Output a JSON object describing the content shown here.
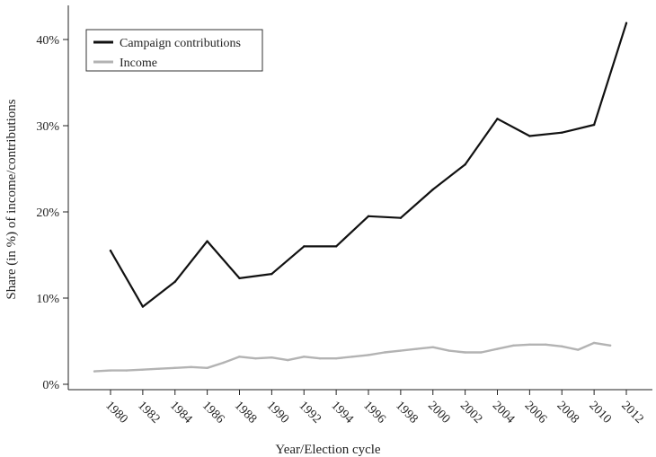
{
  "chart_data": {
    "type": "line",
    "xlabel": "Year/Election cycle",
    "ylabel": "Share (in %) of income/contributions",
    "ylim": [
      0,
      42
    ],
    "xlim": [
      1977,
      2013.5
    ],
    "x_ticks": [
      1980,
      1982,
      1984,
      1986,
      1988,
      1990,
      1992,
      1994,
      1996,
      1998,
      2000,
      2002,
      2004,
      2006,
      2008,
      2010,
      2012
    ],
    "y_ticks": [
      {
        "value": 0,
        "label": "0%"
      },
      {
        "value": 10,
        "label": "10%"
      },
      {
        "value": 20,
        "label": "20%"
      },
      {
        "value": 30,
        "label": "30%"
      },
      {
        "value": 40,
        "label": "40%"
      }
    ],
    "grid": false,
    "legend_position": "top-left",
    "series": [
      {
        "name": "Campaign contributions",
        "color": "#111111",
        "x": [
          1980,
          1982,
          1984,
          1986,
          1988,
          1990,
          1992,
          1994,
          1996,
          1998,
          2000,
          2002,
          2004,
          2006,
          2008,
          2010,
          2012
        ],
        "values": [
          15.5,
          9.0,
          11.9,
          16.6,
          12.3,
          12.8,
          16.0,
          16.0,
          19.5,
          19.3,
          22.6,
          25.5,
          30.8,
          28.8,
          29.2,
          30.1,
          41.9
        ]
      },
      {
        "name": "Income",
        "color": "#b3b3b3",
        "x": [
          1979,
          1980,
          1981,
          1982,
          1983,
          1984,
          1985,
          1986,
          1987,
          1988,
          1989,
          1990,
          1991,
          1992,
          1993,
          1994,
          1995,
          1996,
          1997,
          1998,
          1999,
          2000,
          2001,
          2002,
          2003,
          2004,
          2005,
          2006,
          2007,
          2008,
          2009,
          2010,
          2011
        ],
        "values": [
          1.5,
          1.6,
          1.6,
          1.7,
          1.8,
          1.9,
          2.0,
          1.9,
          2.5,
          3.2,
          3.0,
          3.1,
          2.8,
          3.2,
          3.0,
          3.0,
          3.2,
          3.4,
          3.7,
          3.9,
          4.1,
          4.3,
          3.9,
          3.7,
          3.7,
          4.1,
          4.5,
          4.6,
          4.6,
          4.4,
          4.0,
          4.8,
          4.5
        ]
      }
    ]
  }
}
